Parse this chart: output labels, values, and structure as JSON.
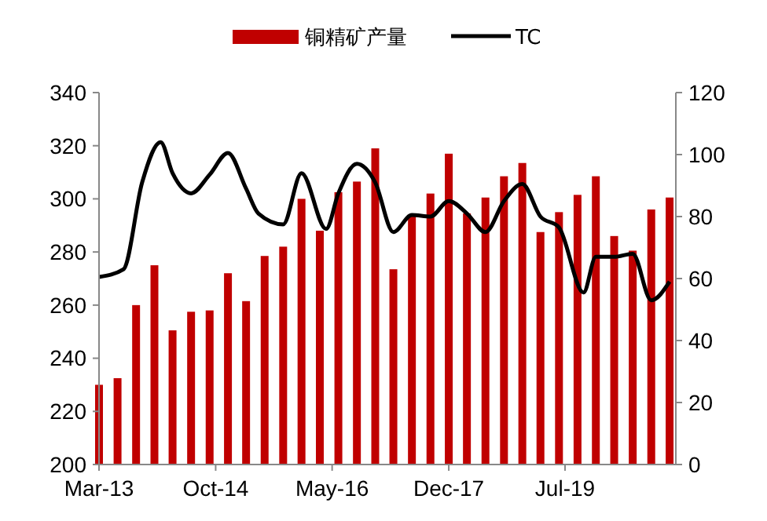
{
  "chart_data": {
    "type": "bar",
    "x": [
      "2013-03",
      "2013-06",
      "2013-09",
      "2013-12",
      "2014-03",
      "2014-06",
      "2014-09",
      "2014-12",
      "2015-03",
      "2015-06",
      "2015-09",
      "2015-12",
      "2016-03",
      "2016-06",
      "2016-09",
      "2016-12",
      "2017-03",
      "2017-06",
      "2017-09",
      "2017-12",
      "2018-03",
      "2018-06",
      "2018-09",
      "2018-12",
      "2019-03",
      "2019-06",
      "2019-09",
      "2019-12",
      "2020-03",
      "2020-06",
      "2020-09",
      "2020-12"
    ],
    "series": [
      {
        "name": "铜精矿产量",
        "color": "#c00000",
        "values": [
          230,
          232.5,
          260,
          275,
          250.5,
          257.5,
          258,
          272,
          261.5,
          278.5,
          282,
          300,
          288,
          302.5,
          306.5,
          319,
          273.5,
          294,
          302,
          317,
          294.5,
          300.5,
          308.5,
          313.5,
          287.5,
          295,
          301.5,
          308.5,
          286,
          280.5,
          296,
          300.5
        ]
      },
      {
        "name": "TC",
        "type": "line",
        "axis": "y2",
        "color": "#000000",
        "x": [
          "2013-03",
          "2013-07",
          "2013-10",
          "2014-01",
          "2014-03",
          "2014-06",
          "2014-09",
          "2014-12",
          "2015-03",
          "2015-05",
          "2015-09",
          "2015-12",
          "2016-04",
          "2016-06",
          "2016-09",
          "2016-12",
          "2017-03",
          "2017-06",
          "2017-09",
          "2017-12",
          "2018-03",
          "2018-06",
          "2018-09",
          "2018-12",
          "2019-03",
          "2019-06",
          "2019-10",
          "2019-12",
          "2020-03",
          "2020-06",
          "2020-09",
          "2020-12"
        ],
        "values": [
          60.5,
          63,
          91,
          104,
          94,
          87.5,
          93.5,
          100.5,
          89,
          81,
          77.5,
          94,
          76,
          87.5,
          97,
          91,
          75,
          80.5,
          80,
          85,
          81,
          75,
          85,
          90.5,
          80,
          76.5,
          55.5,
          67,
          67,
          68,
          53,
          59
        ]
      }
    ],
    "xlim": [
      "2013-03",
      "2021-01"
    ],
    "xticks": [
      {
        "value": "2013-03",
        "label": "Mar-13"
      },
      {
        "value": "2014-10",
        "label": "Oct-14"
      },
      {
        "value": "2016-05",
        "label": "May-16"
      },
      {
        "value": "2017-12",
        "label": "Dec-17"
      },
      {
        "value": "2019-07",
        "label": "Jul-19"
      }
    ],
    "ylim": [
      200,
      340
    ],
    "yticks": [
      200,
      220,
      240,
      260,
      280,
      300,
      320,
      340
    ],
    "y2lim": [
      0,
      120
    ],
    "y2ticks": [
      0,
      20,
      40,
      60,
      80,
      100,
      120
    ],
    "legend": "top",
    "grid": false
  }
}
